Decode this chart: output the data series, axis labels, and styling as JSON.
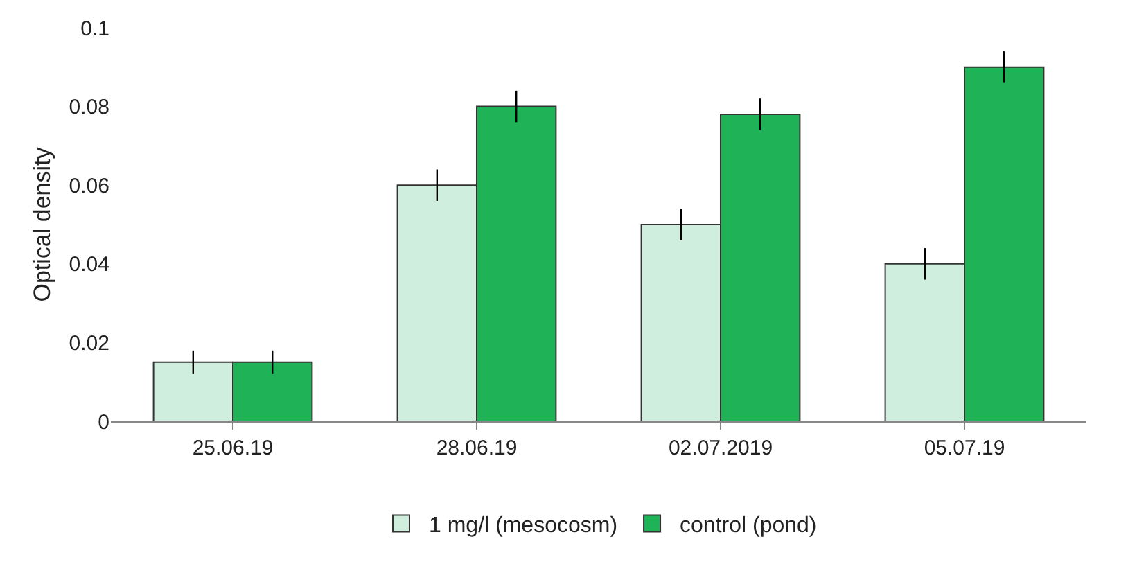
{
  "chart_data": {
    "type": "bar",
    "ylabel": "Optical density",
    "categories": [
      "25.06.19",
      "28.06.19",
      "02.07.2019",
      "05.07.19"
    ],
    "series": [
      {
        "name": "1 mg/l (mesocosm)",
        "color": "#cfeedd",
        "values": [
          0.015,
          0.06,
          0.05,
          0.04
        ],
        "errors": [
          0.003,
          0.004,
          0.004,
          0.004
        ]
      },
      {
        "name": "control (pond)",
        "color": "#1fb256",
        "values": [
          0.015,
          0.08,
          0.078,
          0.09
        ],
        "errors": [
          0.003,
          0.004,
          0.004,
          0.004
        ]
      }
    ],
    "ylim": [
      0,
      0.1
    ],
    "yticks": [
      0,
      0.02,
      0.04,
      0.06,
      0.08,
      0.1
    ],
    "grid": false,
    "legend": "bottom"
  }
}
